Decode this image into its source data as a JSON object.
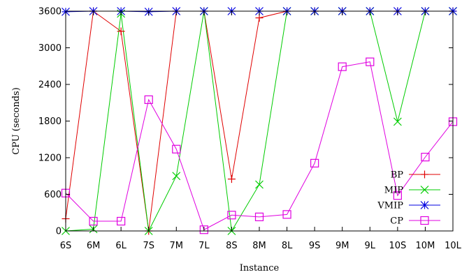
{
  "chart_data": {
    "type": "line",
    "xlabel": "Instance",
    "ylabel": "CPU (seconds)",
    "categories": [
      "6S",
      "6M",
      "6L",
      "7S",
      "7M",
      "7L",
      "8S",
      "8M",
      "8L",
      "9S",
      "9M",
      "9L",
      "10S",
      "10M",
      "10L"
    ],
    "ylim": [
      0,
      3600
    ],
    "yticks": [
      0,
      600,
      1200,
      1800,
      2400,
      3000,
      3600
    ],
    "grid": false,
    "legend_position": "bottom-right",
    "series": [
      {
        "name": "BP",
        "color": "#e00000",
        "marker": "plus",
        "values": [
          200,
          3600,
          3270,
          0,
          3600,
          3600,
          850,
          3490,
          3600,
          3600,
          3600,
          3600,
          3600,
          3600,
          3600
        ]
      },
      {
        "name": "MIP",
        "color": "#00cc00",
        "marker": "cross",
        "values": [
          0,
          30,
          3560,
          0,
          900,
          3600,
          0,
          760,
          3600,
          3600,
          3600,
          3600,
          1790,
          3600,
          3600
        ]
      },
      {
        "name": "VMIP",
        "color": "#0000e0",
        "marker": "star",
        "values": [
          3590,
          3600,
          3600,
          3590,
          3600,
          3600,
          3600,
          3600,
          3600,
          3600,
          3600,
          3600,
          3600,
          3600,
          3600
        ]
      },
      {
        "name": "CP",
        "color": "#e000e0",
        "marker": "square",
        "values": [
          620,
          160,
          160,
          2150,
          1340,
          20,
          260,
          230,
          270,
          1110,
          2690,
          2770,
          580,
          1210,
          1790
        ]
      }
    ]
  }
}
